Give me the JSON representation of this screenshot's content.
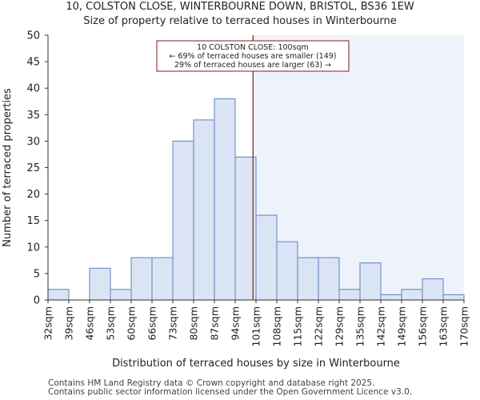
{
  "header": {
    "title": "10, COLSTON CLOSE, WINTERBOURNE DOWN, BRISTOL, BS36 1EW",
    "subtitle": "Size of property relative to terraced houses in Winterbourne"
  },
  "footer": {
    "line1": "Contains HM Land Registry data © Crown copyright and database right 2025.",
    "line2": "Contains public sector information licensed under the Open Government Licence v3.0."
  },
  "chart_data": {
    "type": "bar",
    "title": "10, COLSTON CLOSE, WINTERBOURNE DOWN, BRISTOL, BS36 1EW",
    "subtitle": "Size of property relative to terraced houses in Winterbourne",
    "xlabel": "Distribution of terraced houses by size in Winterbourne",
    "ylabel": "Number of terraced properties",
    "bin_edges": [
      32,
      39,
      46,
      53,
      60,
      66,
      73,
      80,
      87,
      94,
      101,
      108,
      115,
      122,
      129,
      135,
      142,
      149,
      156,
      163,
      170
    ],
    "tick_labels": [
      "32sqm",
      "39sqm",
      "46sqm",
      "53sqm",
      "60sqm",
      "66sqm",
      "73sqm",
      "80sqm",
      "87sqm",
      "94sqm",
      "101sqm",
      "108sqm",
      "115sqm",
      "122sqm",
      "129sqm",
      "135sqm",
      "142sqm",
      "149sqm",
      "156sqm",
      "163sqm",
      "170sqm"
    ],
    "values": [
      2,
      0,
      6,
      2,
      8,
      8,
      30,
      34,
      38,
      27,
      16,
      11,
      8,
      8,
      2,
      7,
      1,
      2,
      4,
      1
    ],
    "ylim": [
      0,
      50
    ],
    "yticks": [
      0,
      5,
      10,
      15,
      20,
      25,
      30,
      35,
      40,
      45,
      50
    ],
    "marker": {
      "value": 100,
      "unit": "sqm",
      "color": "#8b1a1a",
      "label_line1": "10 COLSTON CLOSE: 100sqm",
      "label_line2": "← 69% of terraced houses are smaller (149)",
      "label_line3": "29% of terraced houses are larger (63) →"
    },
    "colors": {
      "bar_fill": "#dbe4f4",
      "bar_stroke": "#5b82c0",
      "highlight_region": "#eef2fb",
      "axis": "#333333"
    },
    "grid": false
  }
}
